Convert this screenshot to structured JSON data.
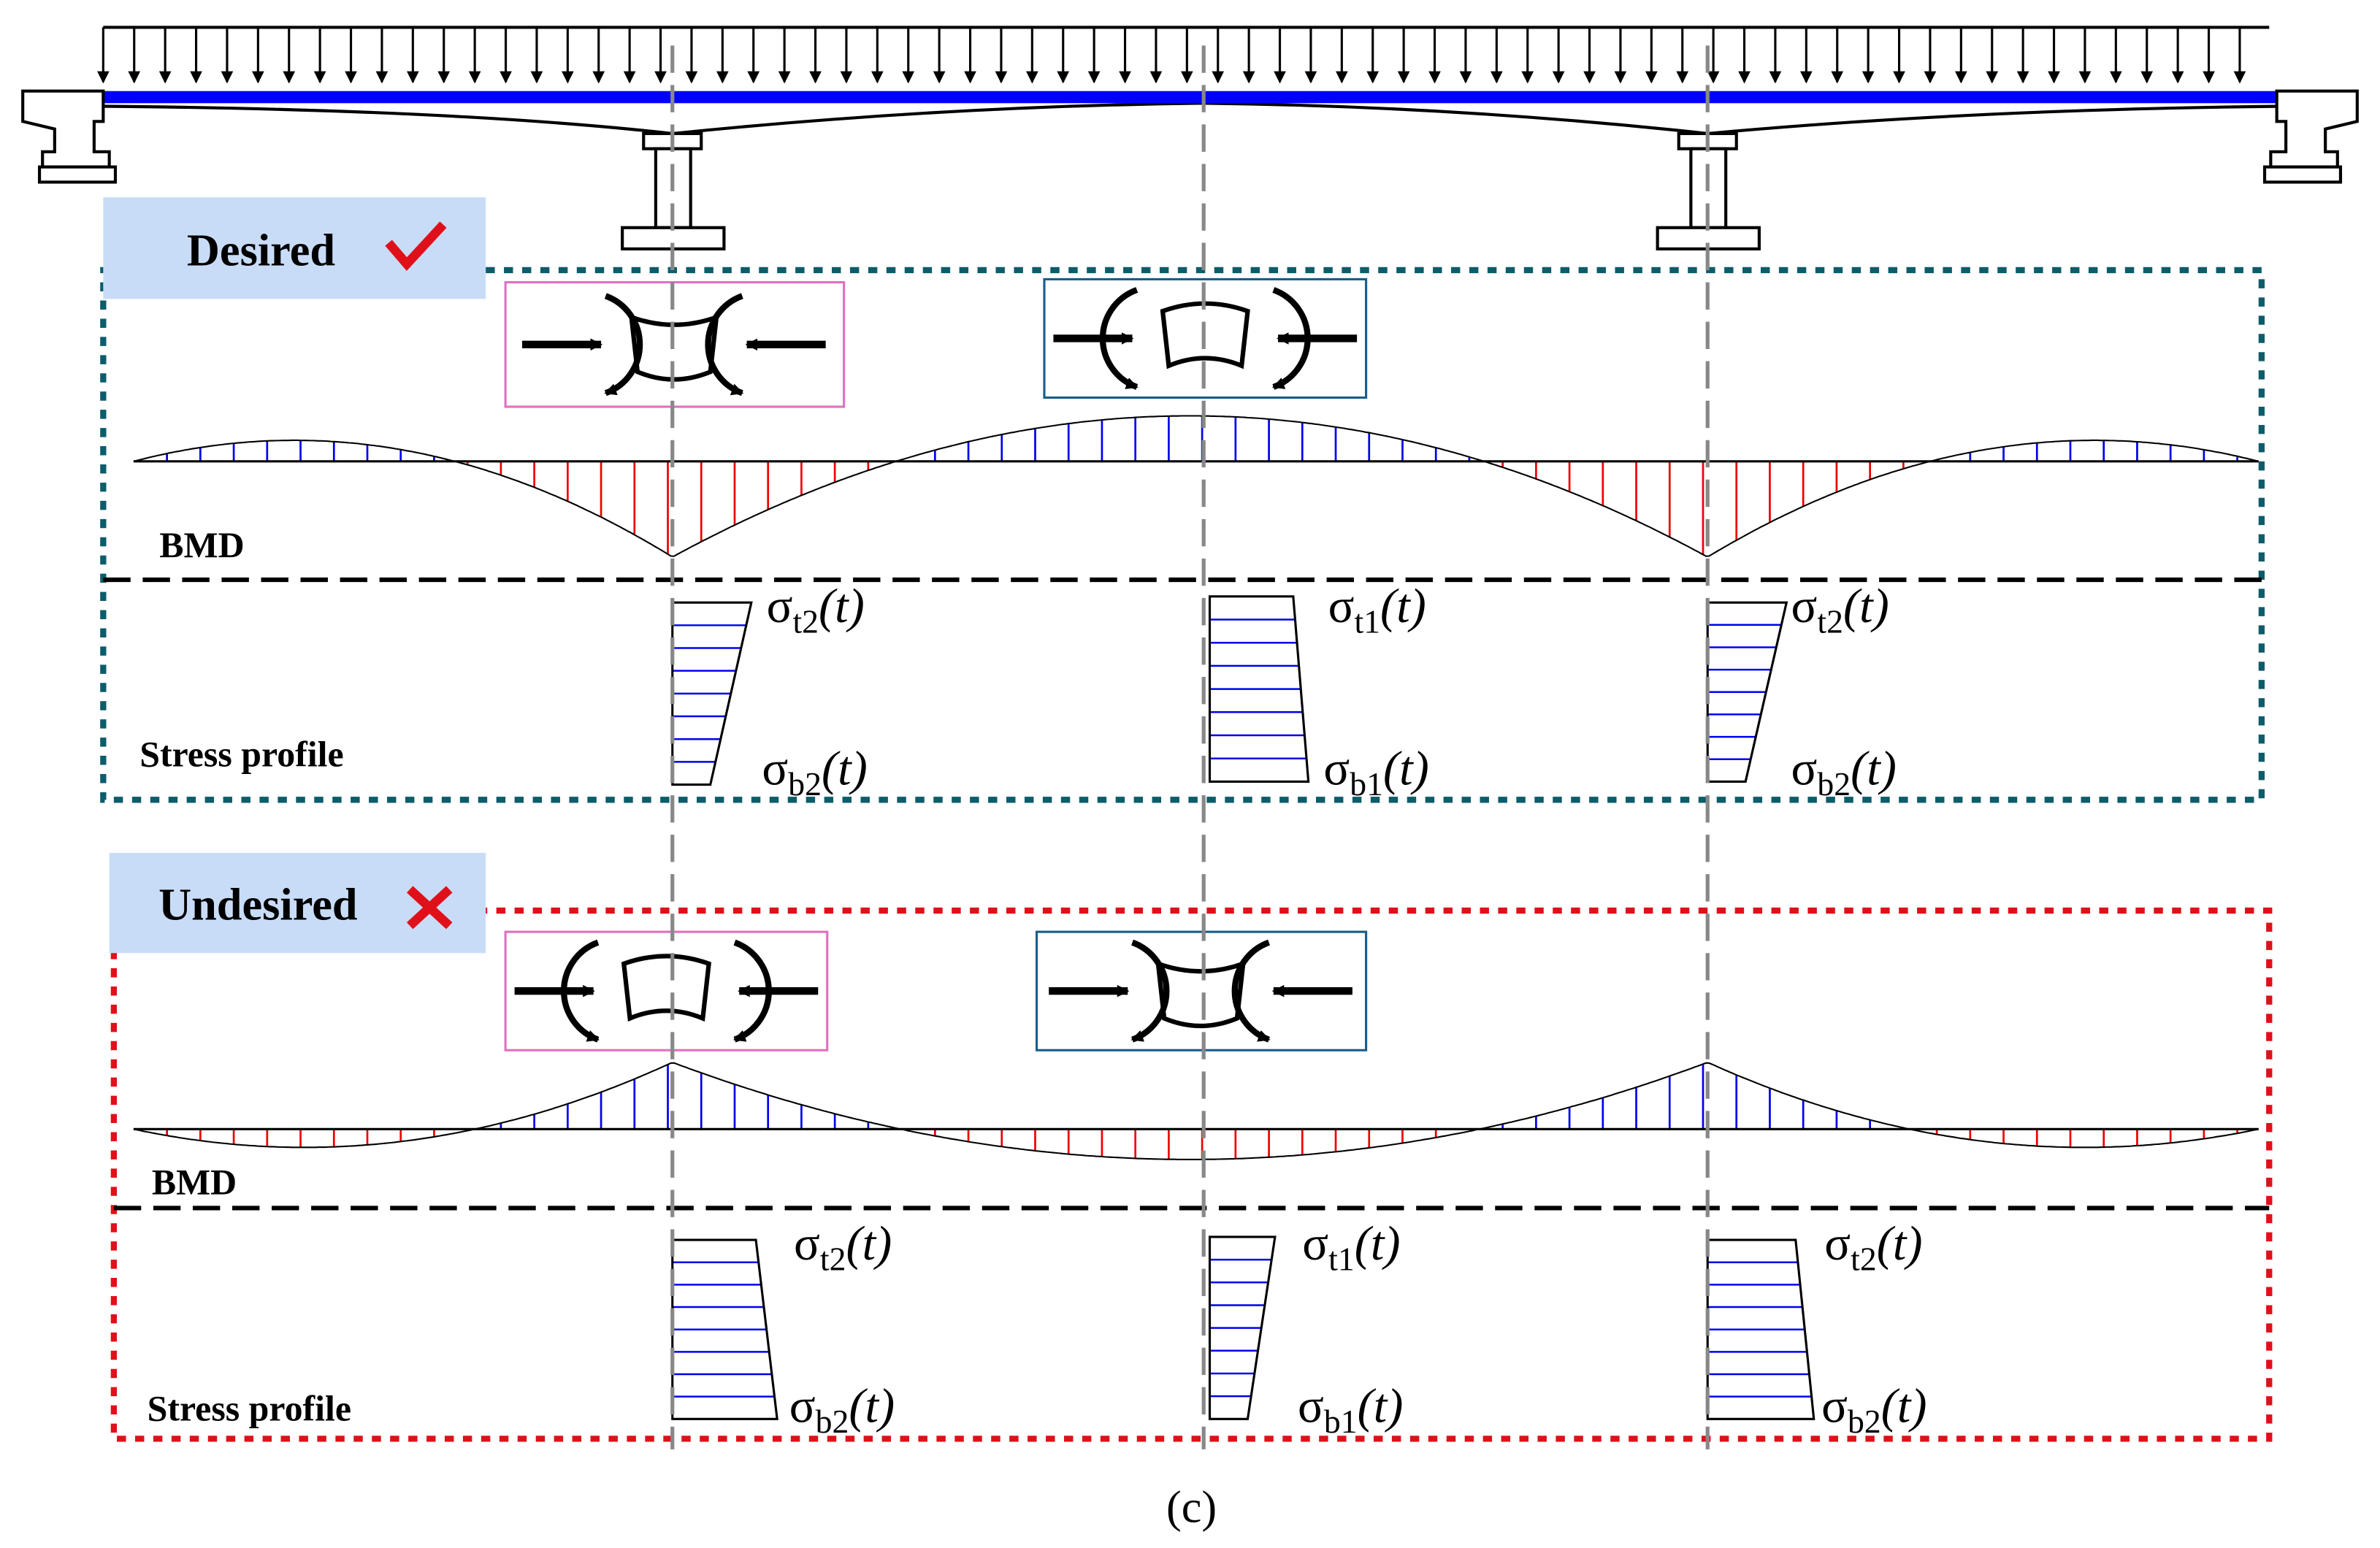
{
  "panels": [
    {
      "label": "Desired",
      "bmd": "BMD",
      "stress": "Stress profile",
      "sigma": [
        {
          "sym": "σ",
          "sub": "t2",
          "arg": "(t)"
        },
        {
          "sym": "σ",
          "sub": "t1",
          "arg": "(t)"
        },
        {
          "sym": "σ",
          "sub": "t2",
          "arg": "(t)"
        },
        {
          "sym": "σ",
          "sub": "b2",
          "arg": "(t)"
        },
        {
          "sym": "σ",
          "sub": "b1",
          "arg": "(t)"
        },
        {
          "sym": "σ",
          "sub": "b2",
          "arg": "(t)"
        }
      ]
    },
    {
      "label": "Undesired",
      "bmd": "BMD",
      "stress": "Stress profile",
      "sigma": [
        {
          "sym": "σ",
          "sub": "t2",
          "arg": "(t)"
        },
        {
          "sym": "σ",
          "sub": "t1",
          "arg": "(t)"
        },
        {
          "sym": "σ",
          "sub": "t2",
          "arg": "(t)"
        },
        {
          "sym": "σ",
          "sub": "b2",
          "arg": "(t)"
        },
        {
          "sym": "σ",
          "sub": "b1",
          "arg": "(t)"
        },
        {
          "sym": "σ",
          "sub": "b2",
          "arg": "(t)"
        }
      ]
    }
  ],
  "caption": "(c)"
}
